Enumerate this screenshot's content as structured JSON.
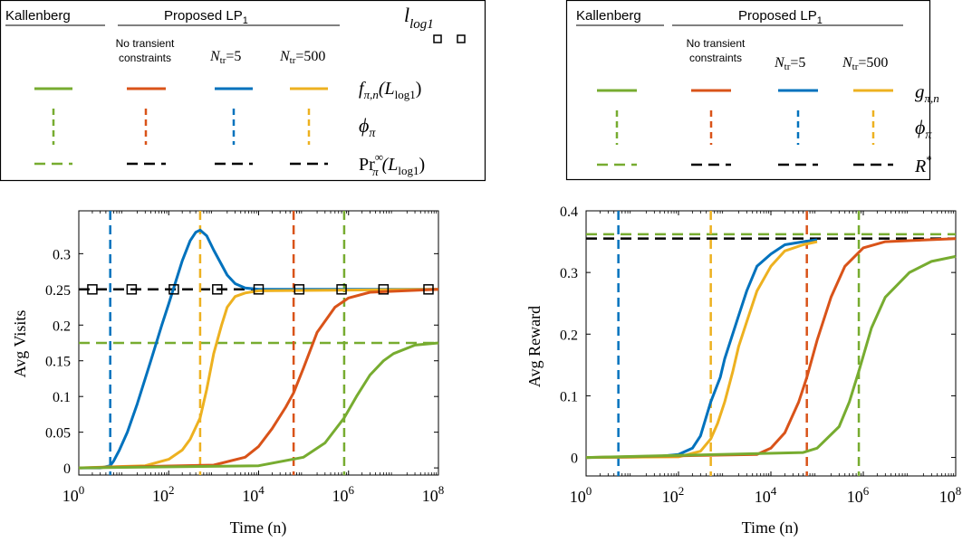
{
  "colors": {
    "kallenberg": "#77AC30",
    "no_transient": "#D95319",
    "ntr5": "#0072BD",
    "ntr500": "#EDB120",
    "black": "#000000"
  },
  "legends": [
    {
      "col_headers": [
        "Kallenberg",
        "Proposed LP",
        "No transient constraints",
        "N",
        "=5",
        "N",
        "=500"
      ],
      "proposed_sub": "1",
      "ntr_sub": "tr",
      "marker_label": "l",
      "marker_sub": "log1",
      "rows": [
        {
          "label": "f",
          "label_sub": "π,n",
          "label_arg": "(L",
          "label_arg_sub": "log1",
          "label_end": ")"
        },
        {
          "label": "ϕ",
          "label_sub": "π"
        },
        {
          "label": "Pr",
          "label_sup": "∞",
          "label_sub": "π",
          "label_arg": "(L",
          "label_arg_sub": "log1",
          "label_end": ")"
        }
      ]
    },
    {
      "col_headers": [
        "Kallenberg",
        "Proposed LP",
        "No transient constraints",
        "N",
        "=5",
        "N",
        "=500"
      ],
      "proposed_sub": "1",
      "ntr_sub": "tr",
      "rows": [
        {
          "label": "g",
          "label_sub": "π,n"
        },
        {
          "label": "ϕ",
          "label_sub": "π"
        },
        {
          "label": "R",
          "label_sup": "*"
        }
      ]
    }
  ],
  "chart_data": [
    {
      "type": "line",
      "xscale": "log",
      "xlim": [
        1,
        100000000
      ],
      "ylim": [
        -0.01,
        0.36
      ],
      "xlabel": "Time (n)",
      "ylabel": "Avg Visits",
      "xticks": [
        1,
        100,
        10000,
        1000000,
        100000000
      ],
      "xtick_labels": [
        {
          "base": "10",
          "exp": "0"
        },
        {
          "base": "10",
          "exp": "2"
        },
        {
          "base": "10",
          "exp": "4"
        },
        {
          "base": "10",
          "exp": "6"
        },
        {
          "base": "10",
          "exp": "8"
        }
      ],
      "yticks": [
        0,
        0.05,
        0.1,
        0.15,
        0.2,
        0.25,
        0.3
      ],
      "ytick_labels": [
        "0",
        "0.05",
        "0.1",
        "0.15",
        "0.2",
        "0.25",
        "0.3"
      ],
      "series": [
        {
          "key": "ntr5",
          "x": [
            1,
            3,
            5,
            6,
            8,
            12,
            20,
            40,
            70,
            100,
            200,
            300,
            400,
            500,
            700,
            1000,
            2000,
            3000,
            5000,
            10000,
            100000000
          ],
          "y": [
            0.0,
            0.0,
            0.003,
            0.01,
            0.025,
            0.05,
            0.09,
            0.15,
            0.2,
            0.23,
            0.29,
            0.318,
            0.33,
            0.333,
            0.325,
            0.305,
            0.27,
            0.258,
            0.252,
            0.25,
            0.25
          ]
        },
        {
          "key": "ntr500",
          "x": [
            1,
            30,
            100,
            200,
            300,
            500,
            700,
            1000,
            1500,
            2000,
            3000,
            5000,
            10000,
            100000000
          ],
          "y": [
            0.0,
            0.003,
            0.012,
            0.025,
            0.04,
            0.07,
            0.11,
            0.16,
            0.2,
            0.225,
            0.24,
            0.245,
            0.248,
            0.25
          ]
        },
        {
          "key": "no_transient",
          "x": [
            1,
            1000,
            5000,
            10000,
            20000,
            40000,
            60000,
            100000,
            200000,
            500000,
            1000000,
            3000000,
            100000000
          ],
          "y": [
            0.0,
            0.004,
            0.015,
            0.03,
            0.055,
            0.085,
            0.105,
            0.14,
            0.19,
            0.225,
            0.238,
            0.246,
            0.25
          ]
        },
        {
          "key": "kallenberg",
          "x": [
            1,
            10000,
            100000,
            300000,
            800000,
            1500000,
            3000000,
            6000000,
            10000000,
            30000000,
            100000000
          ],
          "y": [
            0.0,
            0.003,
            0.015,
            0.035,
            0.07,
            0.1,
            0.13,
            0.15,
            0.16,
            0.172,
            0.175
          ]
        }
      ],
      "markers": {
        "x": [
          2,
          15,
          130,
          1200,
          10000,
          80000,
          700000,
          6000000,
          60000000
        ],
        "y": 0.25
      },
      "vlines": [
        {
          "key": "ntr5",
          "x": 5
        },
        {
          "key": "ntr500",
          "x": 500
        },
        {
          "key": "no_transient",
          "x": 60000
        },
        {
          "key": "kallenberg",
          "x": 800000
        }
      ],
      "hlines": [
        {
          "key": "black",
          "y": 0.25
        },
        {
          "key": "kallenberg",
          "y": 0.175
        }
      ]
    },
    {
      "type": "line",
      "xscale": "log",
      "xlim": [
        1,
        100000000
      ],
      "ylim": [
        -0.03,
        0.4
      ],
      "xlabel": "Time (n)",
      "ylabel": "Avg Reward",
      "xticks": [
        1,
        100,
        10000,
        1000000,
        100000000
      ],
      "xtick_labels": [
        {
          "base": "10",
          "exp": "0"
        },
        {
          "base": "10",
          "exp": "2"
        },
        {
          "base": "10",
          "exp": "4"
        },
        {
          "base": "10",
          "exp": "6"
        },
        {
          "base": "10",
          "exp": "8"
        }
      ],
      "yticks": [
        0,
        0.1,
        0.2,
        0.3,
        0.4
      ],
      "ytick_labels": [
        "0",
        "0.1",
        "0.2",
        "0.3",
        "0.4"
      ],
      "series": [
        {
          "key": "ntr5",
          "x": [
            1,
            30,
            100,
            200,
            300,
            500,
            800,
            1000,
            2000,
            3000,
            5000,
            10000,
            20000,
            50000,
            100000
          ],
          "y": [
            0.0,
            0.001,
            0.005,
            0.015,
            0.035,
            0.09,
            0.13,
            0.16,
            0.23,
            0.27,
            0.31,
            0.33,
            0.345,
            0.35,
            0.353
          ]
        },
        {
          "key": "ntr500",
          "x": [
            1,
            100,
            300,
            500,
            700,
            1000,
            1500,
            2000,
            3000,
            5000,
            10000,
            20000,
            50000,
            100000
          ],
          "y": [
            0.0,
            0.001,
            0.01,
            0.03,
            0.055,
            0.09,
            0.14,
            0.18,
            0.22,
            0.27,
            0.31,
            0.335,
            0.345,
            0.35
          ]
        },
        {
          "key": "no_transient",
          "x": [
            1,
            5000,
            10000,
            20000,
            40000,
            60000,
            100000,
            200000,
            400000,
            1000000,
            3000000,
            100000000
          ],
          "y": [
            0.0,
            0.005,
            0.015,
            0.04,
            0.09,
            0.13,
            0.19,
            0.26,
            0.31,
            0.34,
            0.35,
            0.355
          ]
        },
        {
          "key": "kallenberg",
          "x": [
            1,
            50000,
            100000,
            300000,
            500000,
            800000,
            1500000,
            3000000,
            10000000,
            30000000,
            100000000
          ],
          "y": [
            0.0,
            0.008,
            0.015,
            0.05,
            0.09,
            0.14,
            0.21,
            0.26,
            0.3,
            0.318,
            0.326
          ]
        }
      ],
      "vlines": [
        {
          "key": "ntr5",
          "x": 5
        },
        {
          "key": "ntr500",
          "x": 500
        },
        {
          "key": "no_transient",
          "x": 60000
        },
        {
          "key": "kallenberg",
          "x": 800000
        }
      ],
      "hlines": [
        {
          "key": "kallenberg",
          "y": 0.362
        },
        {
          "key": "black",
          "y": 0.355
        }
      ]
    }
  ]
}
